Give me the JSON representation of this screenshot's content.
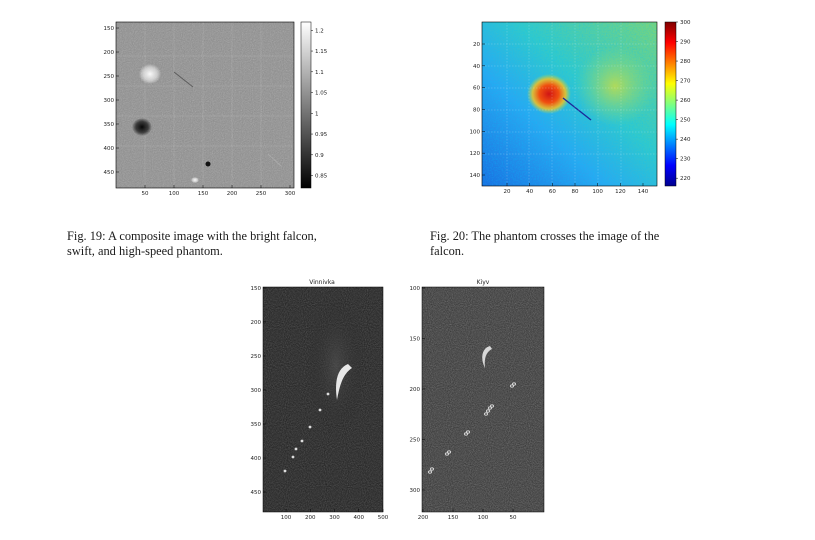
{
  "figures": {
    "fig19": {
      "caption": "Fig. 19: A composite image with the bright falcon, swift, and high-speed phantom.",
      "caption_line1": "Fig. 19: A composite image with the bright falcon,",
      "caption_line2": "swift, and high-speed phantom.",
      "colormap": "gray"
    },
    "fig20": {
      "caption": "Fig. 20: The phantom crosses the image of the falcon.",
      "caption_line1": "Fig. 20:  The phantom crosses the image of the",
      "caption_line2": "falcon.",
      "colormap": "jet"
    },
    "fig_bottom_left": {
      "title": "Vinnivka"
    },
    "fig_bottom_right": {
      "title": "Kiyv"
    }
  },
  "chart_data": [
    {
      "type": "heatmap",
      "name": "fig19",
      "title": "",
      "xlabel": "",
      "ylabel": "",
      "x_ticks": [
        50,
        100,
        150,
        200,
        250,
        300
      ],
      "y_ticks": [
        150,
        200,
        250,
        300,
        350,
        400,
        450
      ],
      "colorbar_ticks": [
        0.85,
        0.9,
        0.95,
        1,
        1.05,
        1.1,
        1.15,
        1.2
      ],
      "colorbar_range": [
        0.82,
        1.22
      ],
      "grid": true
    },
    {
      "type": "heatmap",
      "name": "fig20",
      "title": "",
      "xlabel": "",
      "ylabel": "",
      "x_ticks": [
        20,
        40,
        60,
        80,
        100,
        120,
        140
      ],
      "y_ticks": [
        20,
        40,
        60,
        80,
        100,
        120,
        140
      ],
      "colorbar_ticks": [
        220,
        230,
        240,
        250,
        260,
        270,
        280,
        290,
        300
      ],
      "colorbar_range": [
        216,
        300
      ],
      "grid": true
    },
    {
      "type": "heatmap",
      "name": "vinnivka",
      "title": "Vinnivka",
      "xlabel": "",
      "ylabel": "",
      "x_ticks": [
        100,
        200,
        300,
        400,
        500
      ],
      "y_ticks": [
        150,
        200,
        250,
        300,
        350,
        400,
        450
      ],
      "grid": false
    },
    {
      "type": "heatmap",
      "name": "kiyv",
      "title": "Kiyv",
      "xlabel": "",
      "ylabel": "",
      "x_ticks": [
        200,
        150,
        100,
        50
      ],
      "y_ticks": [
        100,
        150,
        200,
        250,
        300
      ],
      "grid": false
    }
  ]
}
